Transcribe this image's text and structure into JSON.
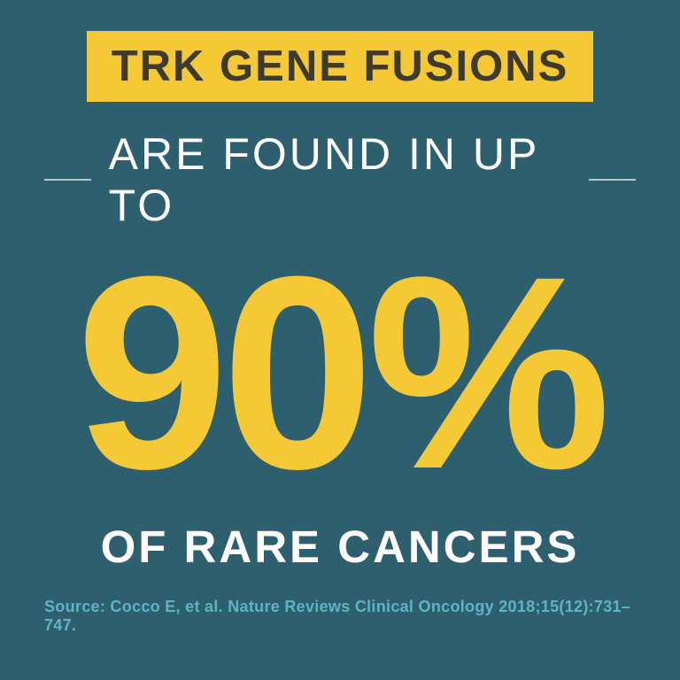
{
  "infographic": {
    "type": "infographic",
    "background_color": "#2d5f6f",
    "title_box": {
      "text": "TRK GENE FUSIONS",
      "background_color": "#f5c836",
      "text_color": "#3d3b2d",
      "font_size": 49,
      "font_weight": 900,
      "letter_spacing": 2
    },
    "subtitle": {
      "text": "ARE FOUND IN UP TO",
      "text_color": "#ffffff",
      "font_size": 50,
      "font_weight": 300,
      "letter_spacing": 3,
      "line_color": "#b8c5c9",
      "line_width": 58
    },
    "big_number": {
      "text": "90%",
      "text_color": "#f5c836",
      "font_size": 310,
      "font_weight": 900
    },
    "bottom_text": {
      "text": "OF RARE CANCERS",
      "text_color": "#ffffff",
      "font_size": 51,
      "font_weight": 700,
      "letter_spacing": 3
    },
    "source": {
      "text": "Source: Cocco E, et al. Nature Reviews Clinical Oncology 2018;15(12):731–747.",
      "text_color": "#5fb3c4",
      "font_size": 18,
      "font_weight": 600
    }
  }
}
